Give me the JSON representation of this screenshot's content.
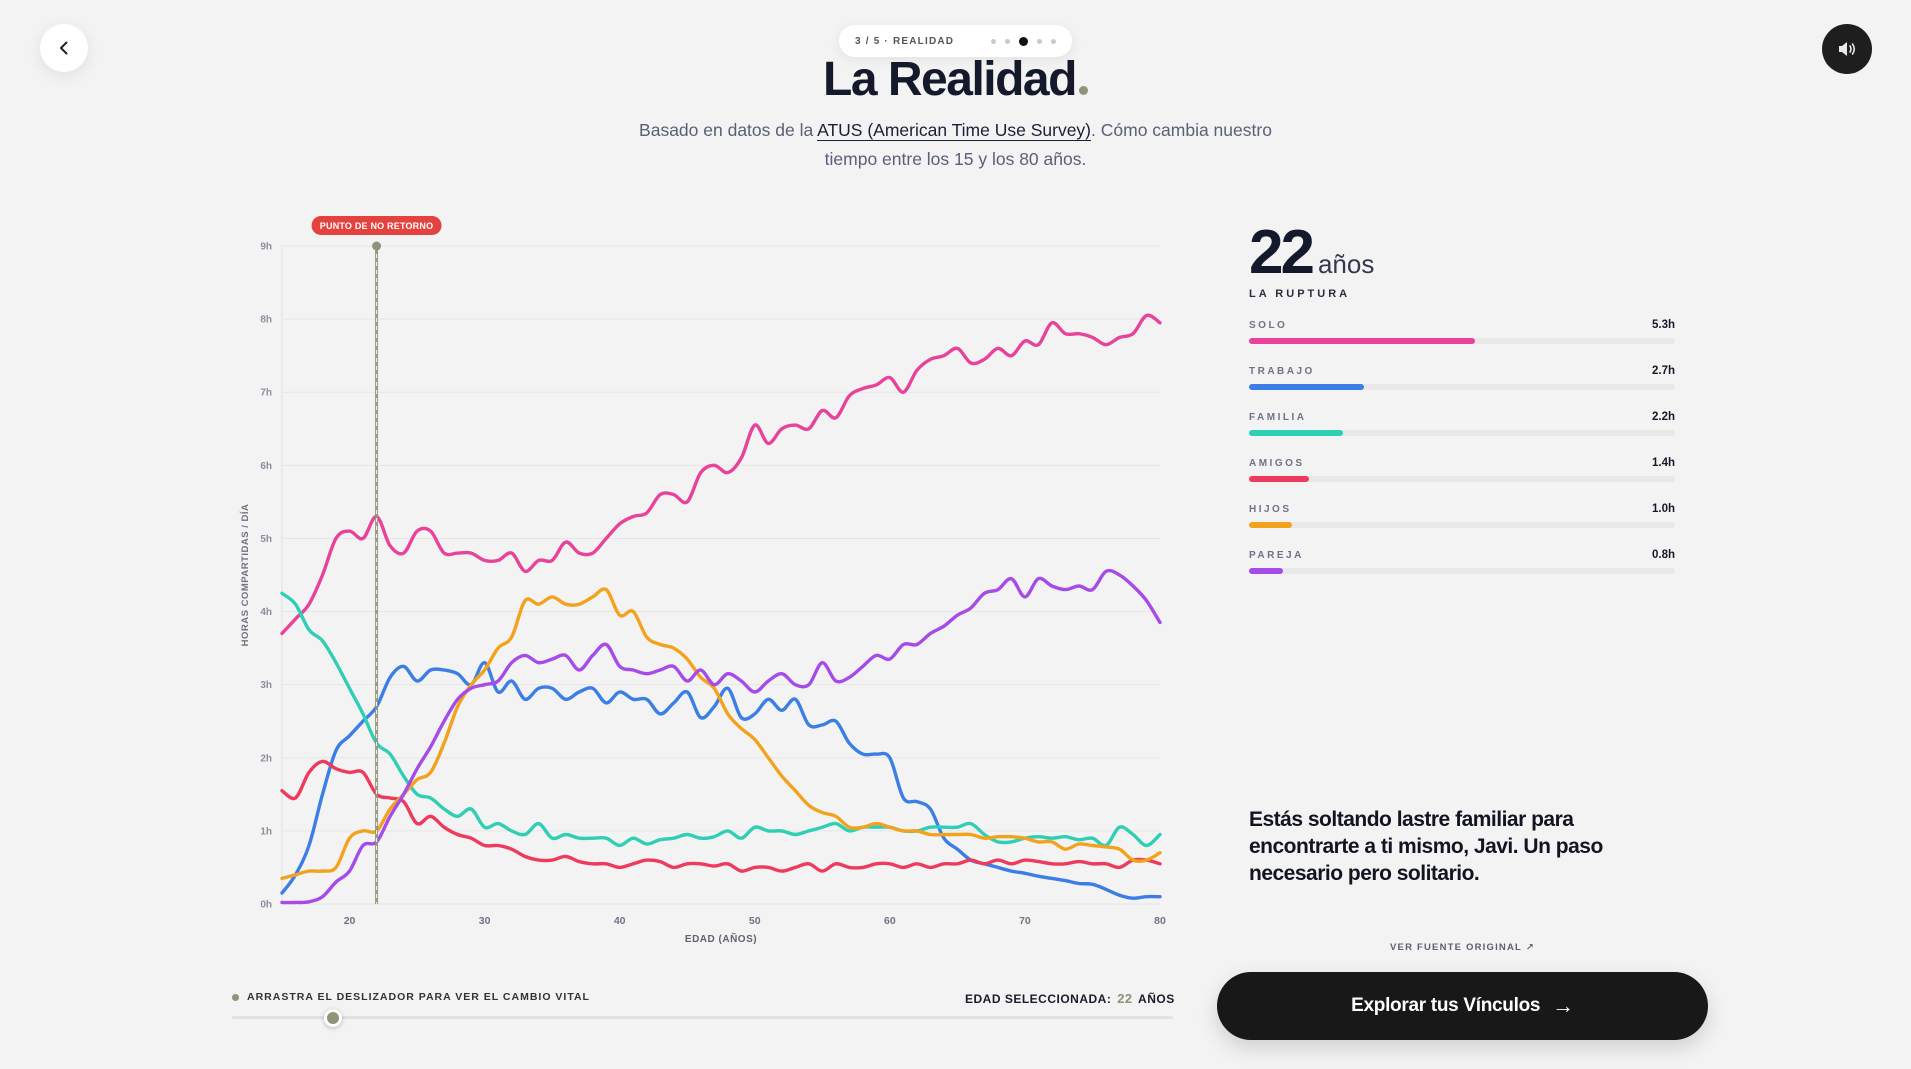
{
  "nav": {
    "step_label": "3 / 5 · REALIDAD",
    "step_total": 5,
    "step_current": 3,
    "back_icon": "chevron-left-icon",
    "sound_icon": "speaker-icon"
  },
  "header": {
    "title": "La Realidad",
    "subtitle_before": "Basado en datos de la ",
    "subtitle_link": "ATUS (American Time Use Survey)",
    "subtitle_after": ". Cómo cambia nuestro tiempo entre los 15 y los 80 años."
  },
  "selected": {
    "age": 22,
    "age_unit": "años",
    "phase": "LA RUPTURA",
    "marker_label": "PUNTO DE NO RETORNO",
    "readout_label": "EDAD SELECCIONADA:",
    "readout_unit": "AÑOS"
  },
  "stats": [
    {
      "label": "SOLO",
      "value": "5.3h",
      "hours": 5.3,
      "color": "#e8439b"
    },
    {
      "label": "TRABAJO",
      "value": "2.7h",
      "hours": 2.7,
      "color": "#3b7ee6"
    },
    {
      "label": "FAMILIA",
      "value": "2.2h",
      "hours": 2.2,
      "color": "#2ecfb4"
    },
    {
      "label": "AMIGOS",
      "value": "1.4h",
      "hours": 1.4,
      "color": "#ee3a5c"
    },
    {
      "label": "HIJOS",
      "value": "1.0h",
      "hours": 1.0,
      "color": "#f3a21d"
    },
    {
      "label": "PAREJA",
      "value": "0.8h",
      "hours": 0.8,
      "color": "#a64be8"
    }
  ],
  "stats_scale_max": 10,
  "message": "Estás soltando lastre familiar para encontrarte a ti mismo, Javi. Un paso necesario pero solitario.",
  "source_link": "VER FUENTE ORIGINAL ↗",
  "cta": {
    "label": "Explorar tus Vínculos",
    "arrow": "→"
  },
  "slider": {
    "label": "ARRASTRA EL DESLIZADOR PARA VER EL CAMBIO VITAL",
    "min": 15,
    "max": 80,
    "value": 22
  },
  "chart_data": {
    "type": "line",
    "xlabel": "EDAD (AÑOS)",
    "ylabel": "HORAS COMPARTIDAS / DÍA",
    "xlim": [
      15,
      80
    ],
    "ylim": [
      0,
      9
    ],
    "xticks": [
      20,
      30,
      40,
      50,
      60,
      70,
      80
    ],
    "yticks": [
      0,
      1,
      2,
      3,
      4,
      5,
      6,
      7,
      8,
      9
    ],
    "ytick_labels": [
      "0h",
      "1h",
      "2h",
      "3h",
      "4h",
      "5h",
      "6h",
      "7h",
      "8h",
      "9h"
    ],
    "x": [
      15,
      16,
      17,
      18,
      19,
      20,
      21,
      22,
      23,
      24,
      25,
      26,
      27,
      28,
      29,
      30,
      31,
      32,
      33,
      34,
      35,
      36,
      37,
      38,
      39,
      40,
      41,
      42,
      43,
      44,
      45,
      46,
      47,
      48,
      49,
      50,
      51,
      52,
      53,
      54,
      55,
      56,
      57,
      58,
      59,
      60,
      61,
      62,
      63,
      64,
      65,
      66,
      67,
      68,
      69,
      70,
      71,
      72,
      73,
      74,
      75,
      76,
      77,
      78,
      79,
      80
    ],
    "series": [
      {
        "key": "solo",
        "color": "#e8439b",
        "values": [
          3.7,
          3.9,
          4.1,
          4.5,
          5.0,
          5.1,
          5.0,
          5.3,
          4.9,
          4.8,
          5.1,
          5.1,
          4.8,
          4.8,
          4.8,
          4.7,
          4.7,
          4.8,
          4.55,
          4.7,
          4.7,
          4.95,
          4.8,
          4.8,
          5.0,
          5.2,
          5.3,
          5.35,
          5.6,
          5.6,
          5.5,
          5.9,
          6.0,
          5.9,
          6.1,
          6.55,
          6.3,
          6.5,
          6.55,
          6.5,
          6.75,
          6.65,
          6.95,
          7.05,
          7.1,
          7.2,
          7.0,
          7.3,
          7.45,
          7.5,
          7.6,
          7.4,
          7.45,
          7.6,
          7.5,
          7.7,
          7.65,
          7.95,
          7.8,
          7.8,
          7.75,
          7.65,
          7.75,
          7.8,
          8.05,
          7.95
        ]
      },
      {
        "key": "trabajo",
        "color": "#3b7ee6",
        "values": [
          0.15,
          0.4,
          0.8,
          1.5,
          2.1,
          2.3,
          2.5,
          2.7,
          3.1,
          3.25,
          3.05,
          3.2,
          3.2,
          3.15,
          3.0,
          3.3,
          2.9,
          3.05,
          2.8,
          2.95,
          2.95,
          2.8,
          2.9,
          2.95,
          2.75,
          2.9,
          2.8,
          2.8,
          2.6,
          2.75,
          2.9,
          2.55,
          2.7,
          2.95,
          2.55,
          2.6,
          2.8,
          2.65,
          2.8,
          2.45,
          2.45,
          2.5,
          2.2,
          2.05,
          2.05,
          2.0,
          1.45,
          1.4,
          1.3,
          0.9,
          0.75,
          0.6,
          0.55,
          0.5,
          0.45,
          0.42,
          0.38,
          0.35,
          0.32,
          0.28,
          0.27,
          0.2,
          0.12,
          0.08,
          0.1,
          0.1
        ]
      },
      {
        "key": "familia",
        "color": "#2ecfb4",
        "values": [
          4.25,
          4.1,
          3.75,
          3.6,
          3.3,
          2.95,
          2.6,
          2.2,
          2.05,
          1.75,
          1.5,
          1.45,
          1.3,
          1.2,
          1.3,
          1.05,
          1.1,
          1.0,
          0.95,
          1.1,
          0.9,
          0.95,
          0.9,
          0.9,
          0.9,
          0.8,
          0.9,
          0.82,
          0.88,
          0.9,
          0.95,
          0.9,
          0.92,
          1.0,
          0.9,
          1.05,
          1.0,
          1.0,
          0.95,
          1.0,
          1.05,
          1.1,
          1.0,
          1.05,
          1.05,
          1.05,
          1.0,
          1.0,
          1.05,
          1.05,
          1.05,
          1.1,
          0.95,
          0.85,
          0.85,
          0.9,
          0.92,
          0.9,
          0.92,
          0.88,
          0.9,
          0.8,
          1.05,
          0.95,
          0.8,
          0.95
        ]
      },
      {
        "key": "amigos",
        "color": "#ee3a5c",
        "values": [
          1.55,
          1.45,
          1.8,
          1.95,
          1.85,
          1.8,
          1.8,
          1.5,
          1.45,
          1.4,
          1.1,
          1.2,
          1.05,
          0.95,
          0.9,
          0.8,
          0.8,
          0.75,
          0.65,
          0.6,
          0.6,
          0.65,
          0.58,
          0.55,
          0.55,
          0.5,
          0.55,
          0.6,
          0.58,
          0.5,
          0.55,
          0.55,
          0.52,
          0.55,
          0.45,
          0.5,
          0.5,
          0.45,
          0.5,
          0.55,
          0.45,
          0.55,
          0.5,
          0.5,
          0.55,
          0.55,
          0.5,
          0.55,
          0.5,
          0.55,
          0.55,
          0.6,
          0.55,
          0.6,
          0.55,
          0.6,
          0.58,
          0.55,
          0.55,
          0.58,
          0.55,
          0.55,
          0.5,
          0.6,
          0.6,
          0.55
        ]
      },
      {
        "key": "hijos",
        "color": "#f3a21d",
        "values": [
          0.35,
          0.4,
          0.45,
          0.45,
          0.5,
          0.9,
          1.0,
          1.0,
          1.3,
          1.5,
          1.7,
          1.8,
          2.2,
          2.7,
          3.0,
          3.2,
          3.5,
          3.65,
          4.15,
          4.1,
          4.2,
          4.1,
          4.1,
          4.2,
          4.3,
          3.95,
          4.0,
          3.65,
          3.55,
          3.5,
          3.35,
          3.1,
          2.95,
          2.6,
          2.4,
          2.25,
          2.0,
          1.75,
          1.55,
          1.35,
          1.25,
          1.2,
          1.05,
          1.05,
          1.1,
          1.05,
          1.0,
          1.0,
          0.95,
          0.95,
          0.95,
          0.95,
          0.9,
          0.92,
          0.92,
          0.9,
          0.85,
          0.85,
          0.75,
          0.82,
          0.8,
          0.78,
          0.75,
          0.6,
          0.6,
          0.7
        ]
      },
      {
        "key": "pareja",
        "color": "#a64be8",
        "values": [
          0.02,
          0.02,
          0.03,
          0.1,
          0.3,
          0.45,
          0.8,
          0.85,
          1.2,
          1.5,
          1.85,
          2.15,
          2.5,
          2.8,
          2.95,
          3.0,
          3.05,
          3.3,
          3.4,
          3.3,
          3.35,
          3.4,
          3.2,
          3.4,
          3.55,
          3.25,
          3.2,
          3.15,
          3.2,
          3.25,
          3.05,
          3.2,
          3.0,
          3.15,
          3.05,
          2.9,
          3.05,
          3.15,
          3.0,
          3.0,
          3.3,
          3.05,
          3.1,
          3.25,
          3.4,
          3.35,
          3.55,
          3.55,
          3.7,
          3.8,
          3.95,
          4.05,
          4.25,
          4.3,
          4.45,
          4.2,
          4.45,
          4.35,
          4.3,
          4.35,
          4.3,
          4.55,
          4.5,
          4.35,
          4.15,
          3.85
        ]
      }
    ],
    "marker_x": 22
  }
}
